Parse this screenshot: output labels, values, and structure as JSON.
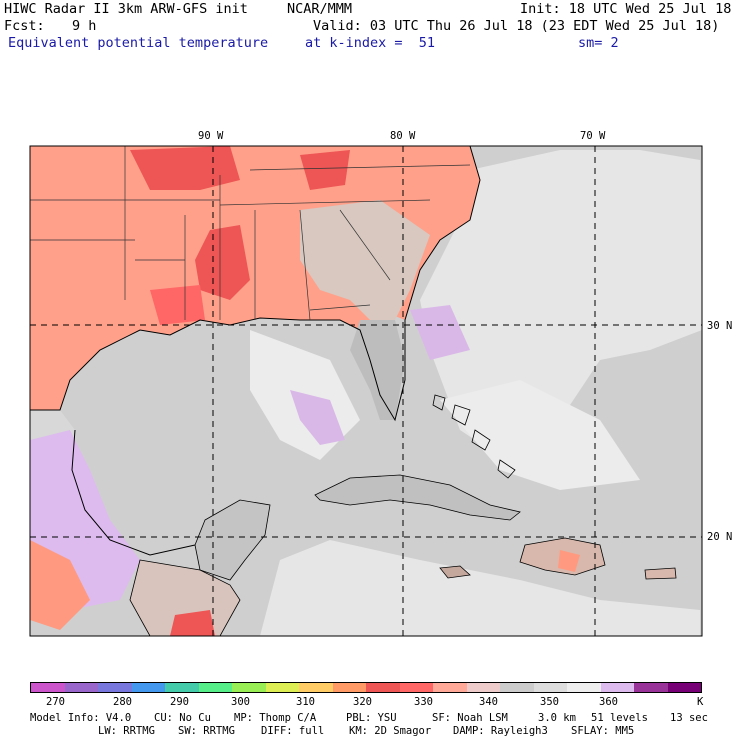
{
  "header": {
    "title": "HIWC Radar II 3km ARW-GFS init",
    "org": "NCAR/MMM",
    "init": "Init: 18 UTC Wed 25 Jul 18",
    "fcst_label": "Fcst:",
    "fcst_value": "9 h",
    "valid": "Valid: 03 UTC Thu 26 Jul 18 (23 EDT Wed 25 Jul 18)",
    "field": "Equivalent potential temperature",
    "level": "at k-index =  51",
    "smoothing": "sm= 2"
  },
  "axes": {
    "lon_labels": [
      "90 W",
      "80 W",
      "70 W"
    ],
    "lat_labels": [
      "30 N",
      "20 N"
    ]
  },
  "legend": {
    "tick_labels": [
      "270",
      "280",
      "290",
      "300",
      "310",
      "320",
      "330",
      "340",
      "350",
      "360",
      "K"
    ],
    "colors": [
      "#cc55cc",
      "#9966cc",
      "#7777dd",
      "#4499ee",
      "#44ccaa",
      "#55ee88",
      "#99ee55",
      "#ddee55",
      "#ffcc66",
      "#ff9966",
      "#ee5555",
      "#ff6666",
      "#ffaa99",
      "#eecccc",
      "#cccccc",
      "#dddddd",
      "#eeeeee",
      "#ddbbee",
      "#993399",
      "#770077"
    ]
  },
  "footer": {
    "line1": {
      "model_info": "Model Info: V4.0",
      "cu": "CU: No Cu",
      "mp": "MP: Thomp C/A",
      "pbl": "PBL: YSU",
      "sf": "SF: Noah LSM",
      "res": "3.0 km",
      "levels": "51 levels",
      "dt": "13 sec"
    },
    "line2": {
      "lw": "LW: RRTMG",
      "sw": "SW: RRTMG",
      "diff": "DIFF: full",
      "km": "KM: 2D Smagor",
      "damp": "DAMP: Rayleigh3",
      "sflay": "SFLAY: MM5"
    }
  }
}
